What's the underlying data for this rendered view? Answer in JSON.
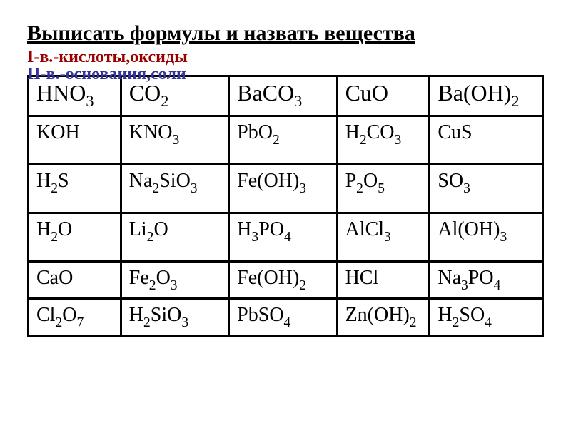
{
  "heading": {
    "main": "Выписать формулы  и назвать вещества",
    "line1": "I-в.-кислоты,оксиды",
    "line2": "II-в.-основания,соли"
  },
  "table": {
    "columns": 5,
    "rows": [
      {
        "height_class": "first-row",
        "cells": [
          "HNO<sub>3</sub>",
          "CO<sub>2</sub>",
          "BaCO<sub>3</sub>",
          "CuO",
          "Ba(OH)<sub>2</sub>"
        ]
      },
      {
        "height_class": "data-row",
        "cells": [
          "KOH",
          "KNO<sub>3</sub>",
          "PbO<sub>2</sub>",
          "H<sub>2</sub>CO<sub>3</sub>",
          "CuS"
        ]
      },
      {
        "height_class": "data-row",
        "cells": [
          "H<sub>2</sub>S",
          "Na<sub>2</sub>SiO<sub>3</sub>",
          "Fe(OH)<sub>3</sub>",
          "P<sub>2</sub>O<sub>5</sub>",
          "SO<sub>3</sub>"
        ]
      },
      {
        "height_class": "data-row",
        "cells": [
          "H<sub>2</sub>O",
          "Li<sub>2</sub>O",
          "H<sub>3</sub>PO<sub>4</sub>",
          "AlCl<sub>3</sub>",
          "Al(OH)<sub>3</sub>"
        ]
      },
      {
        "height_class": "short-row",
        "cells": [
          "CaO",
          "Fe<sub>2</sub>O<sub>3</sub>",
          "Fe(OH)<sub>2</sub>",
          "HCl",
          "Na<sub>3</sub>PO<sub>4</sub>"
        ]
      },
      {
        "height_class": "short-row",
        "cells": [
          "Cl<sub>2</sub>O<sub>7</sub>",
          "H<sub>2</sub>SiO<sub>3</sub>",
          "PbSO<sub>4</sub>",
          "Zn(OH)<sub>2</sub>",
          "H<sub>2</sub>SO<sub>4</sub>"
        ]
      }
    ],
    "col_widths_pct": [
      18,
      21,
      21,
      18,
      22
    ],
    "border_color": "#000000",
    "background_color": "#ffffff",
    "text_color": "#000000",
    "cell_fontsize_first": 32,
    "cell_fontsize_rest": 28
  },
  "colors": {
    "heading_main": "#000000",
    "heading_line1": "#990000",
    "heading_line2": "#333399",
    "page_background": "#ffffff"
  }
}
